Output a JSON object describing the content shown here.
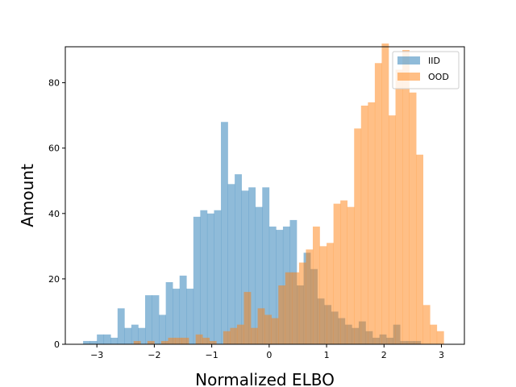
{
  "chart_data": {
    "type": "histogram",
    "xlabel": "Normalized ELBO",
    "ylabel": "Amount",
    "xlim": [
      -3.55,
      3.4
    ],
    "ylim": [
      0,
      91
    ],
    "x_ticks": [
      -3,
      -2,
      -1,
      0,
      1,
      2,
      3
    ],
    "y_ticks": [
      0,
      20,
      40,
      60,
      80
    ],
    "legend_position": "top-right",
    "bin_width": 0.12,
    "series": [
      {
        "name": "IID",
        "color": "#1f77b4",
        "opacity": 0.5,
        "bin_start": -3.24,
        "counts": [
          1,
          1,
          3,
          3,
          2,
          11,
          5,
          6,
          5,
          15,
          15,
          9,
          19,
          17,
          21,
          17,
          39,
          41,
          40,
          41,
          68,
          49,
          52,
          47,
          48,
          42,
          48,
          36,
          35,
          36,
          38,
          18,
          28,
          23,
          14,
          12,
          10,
          8,
          6,
          5,
          7,
          4,
          2,
          3,
          2,
          6,
          1,
          1,
          1
        ]
      },
      {
        "name": "OOD",
        "color": "#ff7f0e",
        "opacity": 0.5,
        "bin_start": -2.36,
        "counts": [
          1,
          0,
          1,
          0,
          1,
          2,
          2,
          2,
          0,
          3,
          2,
          1,
          0,
          4,
          5,
          6,
          16,
          5,
          11,
          9,
          8,
          18,
          22,
          22,
          25,
          29,
          36,
          30,
          31,
          43,
          44,
          42,
          66,
          73,
          74,
          86,
          92,
          70,
          84,
          90,
          77,
          58,
          12,
          6,
          4
        ]
      }
    ]
  }
}
